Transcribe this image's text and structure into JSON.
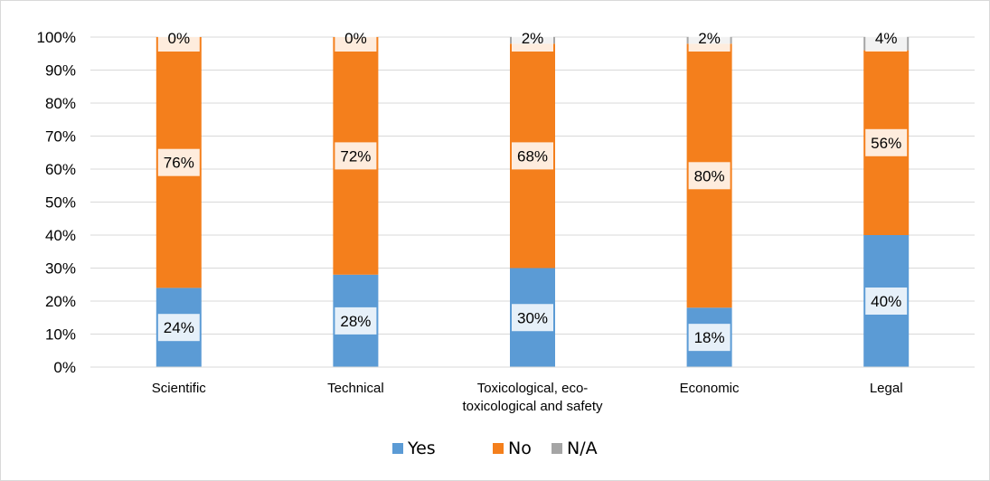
{
  "chart_data": {
    "type": "bar",
    "stacked": true,
    "percent_stacked": true,
    "categories": [
      [
        "Scientific"
      ],
      [
        "Technical"
      ],
      [
        "Toxicological, eco-",
        "toxicological and safety"
      ],
      [
        "Economic"
      ],
      [
        "Legal"
      ]
    ],
    "series": [
      {
        "name": "Yes",
        "values": [
          24,
          28,
          30,
          18,
          40
        ],
        "labels": [
          "24%",
          "28%",
          "30%",
          "18%",
          "40%"
        ],
        "color": "#5b9bd5"
      },
      {
        "name": "No",
        "values": [
          76,
          72,
          68,
          80,
          56
        ],
        "labels": [
          "76%",
          "72%",
          "68%",
          "80%",
          "56%"
        ],
        "color": "#f47f1c"
      },
      {
        "name": "N/A",
        "values": [
          0,
          0,
          2,
          2,
          4
        ],
        "labels": [
          "0%",
          "0%",
          "2%",
          "2%",
          "4%"
        ],
        "color": "#a5a5a5"
      }
    ],
    "yticks": [
      "0%",
      "10%",
      "20%",
      "30%",
      "40%",
      "50%",
      "60%",
      "70%",
      "80%",
      "90%",
      "100%"
    ],
    "ylim": [
      0,
      100
    ],
    "grid": true,
    "legend_position": "bottom"
  }
}
